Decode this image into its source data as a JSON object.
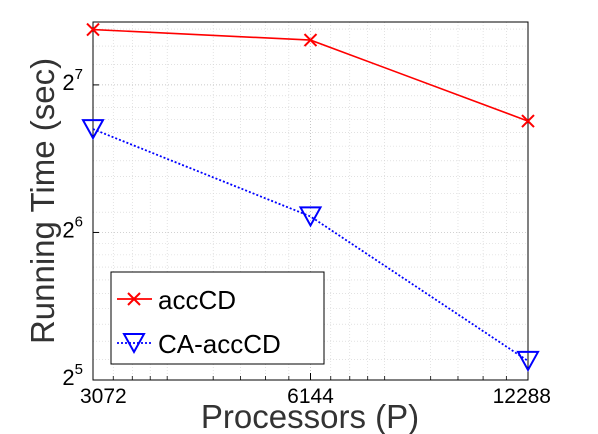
{
  "chart_data": {
    "type": "line",
    "xlabel": "Processors (P)",
    "ylabel": "Running Time (sec)",
    "x_scale": "log2",
    "y_scale": "log2",
    "xlim": [
      3072,
      12288
    ],
    "ylim": [
      32,
      172
    ],
    "x_ticks": [
      {
        "value": 3072,
        "label": "3072"
      },
      {
        "value": 6144,
        "label": "6144"
      },
      {
        "value": 12288,
        "label": "12288"
      }
    ],
    "y_ticks": [
      {
        "value": 32,
        "base": "2",
        "exp": "5"
      },
      {
        "value": 64,
        "base": "2",
        "exp": "6"
      },
      {
        "value": 128,
        "base": "2",
        "exp": "7"
      }
    ],
    "grid": true,
    "legend_position": "bottom-left",
    "series": [
      {
        "name": "accCD",
        "color": "#ff0000",
        "marker": "x",
        "line_style": "solid",
        "x": [
          3072,
          6144,
          12288
        ],
        "y": [
          166,
          158,
          108
        ]
      },
      {
        "name": "CA-accCD",
        "color": "#0000ff",
        "marker": "triangle-down",
        "line_style": "dotted",
        "x": [
          3072,
          6144,
          12288
        ],
        "y": [
          104,
          69,
          35
        ]
      }
    ]
  }
}
